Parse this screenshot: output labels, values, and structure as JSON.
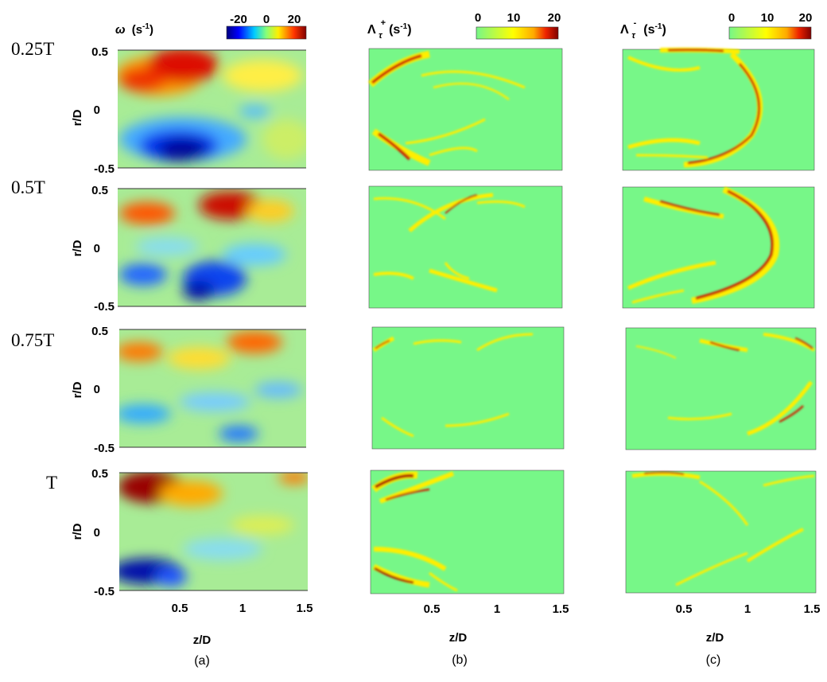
{
  "figure": {
    "time_labels": [
      "0.25T",
      "0.5T",
      "0.75T",
      "T"
    ],
    "columns": [
      {
        "id": "vorticity",
        "title": "ω (s⁻¹)",
        "title_symbol": "ω",
        "title_unit": "(s",
        "title_exp": "-1",
        "colorbar_ticks": [
          "-20",
          "0",
          "20"
        ],
        "colorbar_range": [
          -20,
          20
        ],
        "colormap": "jet",
        "panel_label": "(a)"
      },
      {
        "id": "lambda-plus",
        "title_symbol": "Λ",
        "title_sup": "+",
        "title_sub": "τ",
        "title_unit": "(s",
        "title_exp": "-1",
        "colorbar_ticks": [
          "0",
          "10",
          "20"
        ],
        "colorbar_range": [
          0,
          20
        ],
        "colormap": "green-yellow-red",
        "panel_label": "(b)"
      },
      {
        "id": "lambda-minus",
        "title_symbol": "Λ",
        "title_sup": "-",
        "title_sub": "τ",
        "title_unit": "(s",
        "title_exp": "-1",
        "colorbar_ticks": [
          "0",
          "10",
          "20"
        ],
        "colorbar_range": [
          0,
          20
        ],
        "colormap": "green-yellow-red",
        "panel_label": "(c)"
      }
    ],
    "axes": {
      "y_label": "r/D",
      "y_ticks": [
        "0.5",
        "0",
        "-0.5"
      ],
      "x_label": "z/D",
      "x_ticks": [
        "0.5",
        "1",
        "1.5"
      ],
      "x_range": [
        0,
        1.5
      ],
      "y_range": [
        -0.5,
        0.5
      ]
    },
    "colors": {
      "lambda_background": "#77f788",
      "yellow": "#ffee00",
      "red": "#cc2200",
      "dark_red": "#7f0000",
      "jet_blue": "#0000bb",
      "jet_field": "#9fe8a0"
    }
  }
}
